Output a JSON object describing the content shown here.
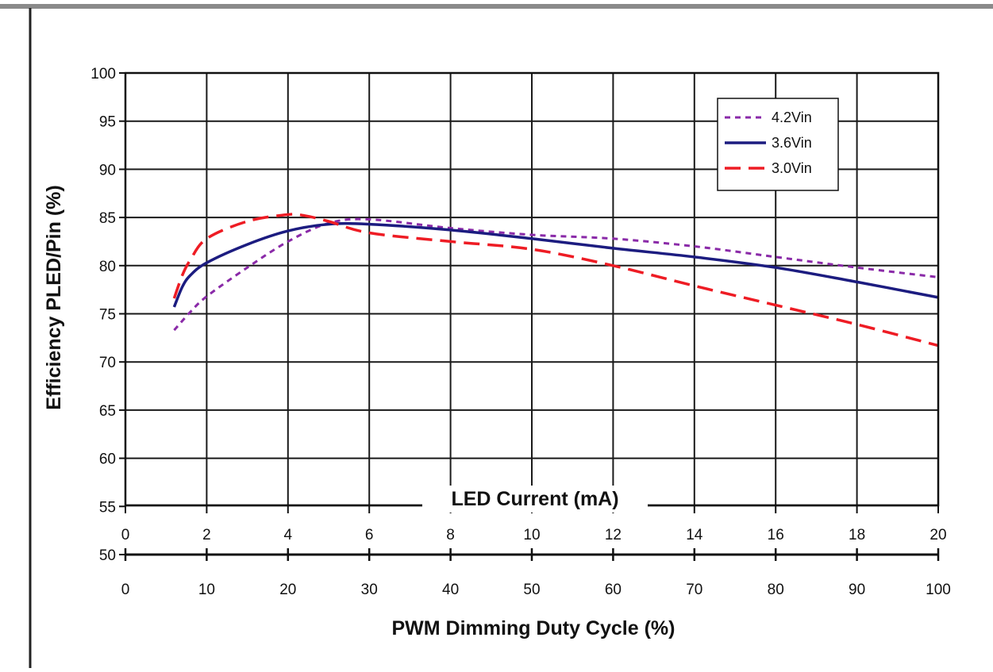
{
  "chart_data": {
    "type": "line",
    "ylabel": "Efficiency  PLED/Pin (%)",
    "ylim": [
      50,
      100
    ],
    "yticks": [
      "50",
      "55",
      "60",
      "65",
      "70",
      "75",
      "80",
      "85",
      "90",
      "95",
      "100"
    ],
    "top_axis": {
      "label": "LED Current (mA)",
      "range": [
        0,
        20
      ],
      "ticks": [
        "0",
        "2",
        "4",
        "6",
        "8",
        "10",
        "12",
        "14",
        "16",
        "18",
        "20"
      ]
    },
    "bottom_axis": {
      "label": "PWM Dimming Duty Cycle (%)",
      "range": [
        0,
        100
      ],
      "ticks": [
        "0",
        "10",
        "20",
        "30",
        "40",
        "50",
        "60",
        "70",
        "80",
        "90",
        "100"
      ]
    },
    "grid": true,
    "legend_position": "top-right",
    "series": [
      {
        "name": "4.2Vin",
        "color": "#8a2aa8",
        "dash": "dotted",
        "x": [
          6,
          8,
          10,
          15,
          20,
          25,
          30,
          40,
          50,
          60,
          70,
          80,
          90,
          100
        ],
        "y": [
          73.3,
          75.2,
          76.8,
          79.8,
          82.5,
          84.4,
          84.8,
          83.9,
          83.2,
          82.8,
          82.0,
          80.9,
          79.8,
          78.8
        ]
      },
      {
        "name": "3.6Vin",
        "color": "#1c1c80",
        "dash": "solid",
        "x": [
          6,
          7,
          8,
          10,
          15,
          20,
          25,
          30,
          40,
          50,
          60,
          70,
          80,
          90,
          100
        ],
        "y": [
          75.7,
          77.8,
          79.0,
          80.3,
          82.2,
          83.6,
          84.3,
          84.3,
          83.7,
          82.8,
          81.8,
          80.9,
          79.8,
          78.3,
          76.7
        ]
      },
      {
        "name": "3.0Vin",
        "color": "#ee1c24",
        "dash": "dashed",
        "x": [
          6,
          7,
          8,
          10,
          15,
          20,
          22,
          25,
          30,
          40,
          50,
          60,
          70,
          80,
          90,
          100
        ],
        "y": [
          76.6,
          79.0,
          80.6,
          82.8,
          84.6,
          85.3,
          85.2,
          84.6,
          83.4,
          82.5,
          81.7,
          80.0,
          77.9,
          75.9,
          73.9,
          71.7
        ]
      }
    ]
  }
}
